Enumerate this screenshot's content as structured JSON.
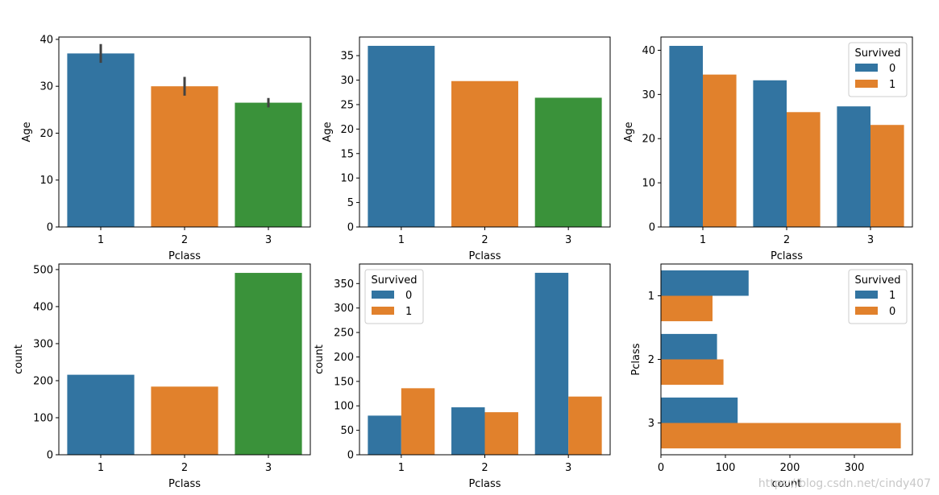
{
  "watermark": "https://blog.csdn.net/cindy407",
  "colors": {
    "c0": "#3274a1",
    "c1": "#e1812c",
    "c2": "#3a923a",
    "err": "#424242"
  },
  "chart_data": [
    {
      "type": "bar",
      "orient": "v",
      "categories": [
        "1",
        "2",
        "3"
      ],
      "values": [
        37,
        30,
        26.5
      ],
      "errors": [
        [
          35,
          39
        ],
        [
          28,
          32
        ],
        [
          25.5,
          27.5
        ]
      ],
      "bar_colors": [
        "c0",
        "c1",
        "c2"
      ],
      "xlabel": "Pclass",
      "ylabel": "Age",
      "ylim": [
        0,
        40.5
      ],
      "ticks": [
        0,
        10,
        20,
        30,
        40
      ]
    },
    {
      "type": "bar",
      "orient": "v",
      "categories": [
        "1",
        "2",
        "3"
      ],
      "values": [
        37,
        29.8,
        26.4
      ],
      "bar_colors": [
        "c0",
        "c1",
        "c2"
      ],
      "xlabel": "Pclass",
      "ylabel": "Age",
      "ylim": [
        0,
        38.8
      ],
      "ticks": [
        0,
        5,
        10,
        15,
        20,
        25,
        30,
        35
      ]
    },
    {
      "type": "bar",
      "orient": "v",
      "categories": [
        "1",
        "2",
        "3"
      ],
      "series": [
        {
          "name": "0",
          "values": [
            41,
            33.2,
            27.3
          ],
          "color": "c0"
        },
        {
          "name": "1",
          "values": [
            34.5,
            26,
            23.1
          ],
          "color": "c1"
        }
      ],
      "legend": {
        "title": "Survived",
        "position": "top-right"
      },
      "xlabel": "Pclass",
      "ylabel": "Age",
      "ylim": [
        0,
        43
      ],
      "ticks": [
        0,
        10,
        20,
        30,
        40
      ]
    },
    {
      "type": "bar",
      "orient": "v",
      "categories": [
        "1",
        "2",
        "3"
      ],
      "values": [
        216,
        184,
        491
      ],
      "bar_colors": [
        "c0",
        "c1",
        "c2"
      ],
      "xlabel": "Pclass",
      "ylabel": "count",
      "ylim": [
        0,
        515
      ],
      "ticks": [
        0,
        100,
        200,
        300,
        400,
        500
      ]
    },
    {
      "type": "bar",
      "orient": "v",
      "categories": [
        "1",
        "2",
        "3"
      ],
      "series": [
        {
          "name": "0",
          "values": [
            80,
            97,
            372
          ],
          "color": "c0"
        },
        {
          "name": "1",
          "values": [
            136,
            87,
            119
          ],
          "color": "c1"
        }
      ],
      "legend": {
        "title": "Survived",
        "position": "top-left"
      },
      "xlabel": "Pclass",
      "ylabel": "count",
      "ylim": [
        0,
        390
      ],
      "ticks": [
        0,
        50,
        100,
        150,
        200,
        250,
        300,
        350
      ]
    },
    {
      "type": "bar",
      "orient": "h",
      "categories": [
        "1",
        "2",
        "3"
      ],
      "series": [
        {
          "name": "1",
          "values": [
            136,
            87,
            119
          ],
          "color": "c0"
        },
        {
          "name": "0",
          "values": [
            80,
            97,
            372
          ],
          "color": "c1"
        }
      ],
      "legend": {
        "title": "Survived",
        "position": "top-right"
      },
      "xlabel": "count",
      "ylabel": "Pclass",
      "xlim": [
        0,
        390
      ],
      "ticks": [
        0,
        100,
        200,
        300
      ]
    }
  ]
}
